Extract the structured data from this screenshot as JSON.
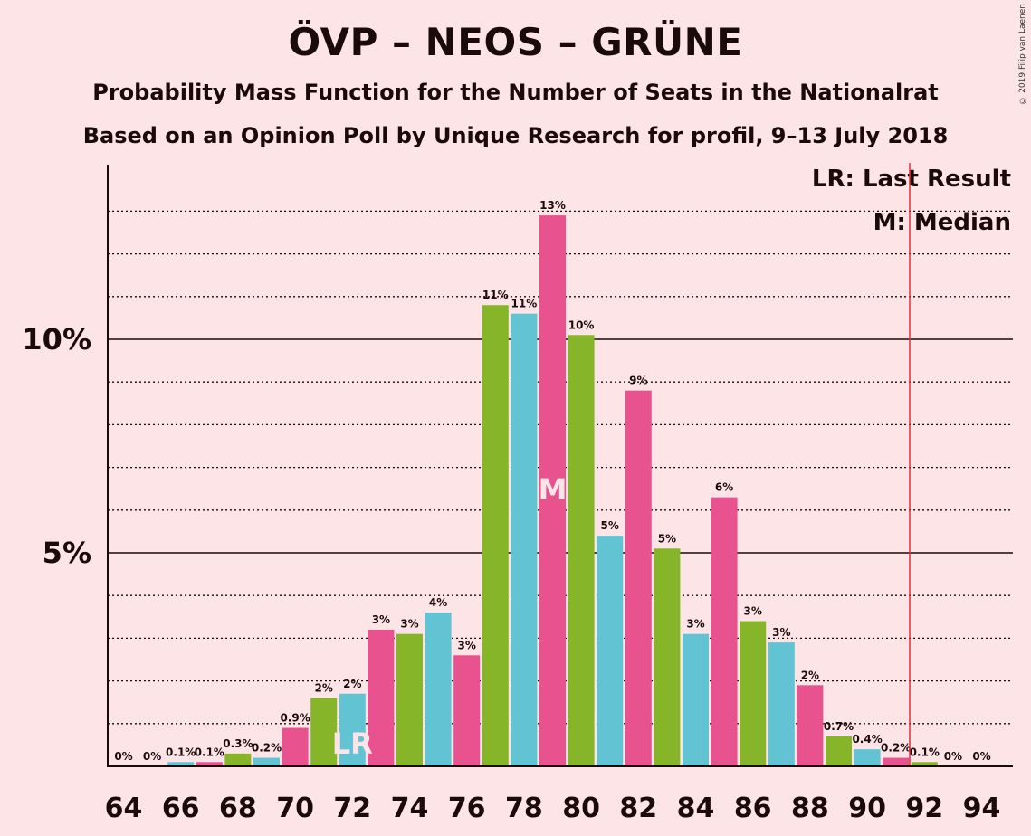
{
  "title": "ÖVP – NEOS – GRÜNE",
  "subtitle_1": "Probability Mass Function for the Number of Seats in the Nationalrat",
  "subtitle_2": "Based on an Opinion Poll by Unique Research for profil, 9–13 July 2018",
  "copyright": "© 2019 Filip van Laenen",
  "legend": {
    "last_result": "LR: Last Result",
    "median": "M: Median"
  },
  "colors": {
    "background": "#fde4e7",
    "green": "#86b52a",
    "blue": "#62c3d3",
    "pink": "#e8538f",
    "majority_line": "#e0303a",
    "text": "#1a0a0a"
  },
  "chart_data": {
    "type": "bar",
    "xlabel": "",
    "ylabel": "",
    "ylim": [
      0,
      14
    ],
    "x_ticks": [
      64,
      66,
      68,
      70,
      72,
      74,
      76,
      78,
      80,
      82,
      84,
      86,
      88,
      90,
      92,
      94
    ],
    "y_ticks": [
      {
        "value": 5,
        "label": "5%"
      },
      {
        "value": 10,
        "label": "10%"
      }
    ],
    "grid": "dotted horizontal lines every 1%",
    "categories": [
      64,
      65,
      66,
      67,
      68,
      69,
      70,
      71,
      72,
      73,
      74,
      75,
      76,
      77,
      78,
      79,
      80,
      81,
      82,
      83,
      84,
      85,
      86,
      87,
      88,
      89,
      90,
      91,
      92,
      93,
      94
    ],
    "values": [
      0,
      0,
      0.1,
      0.1,
      0.3,
      0.2,
      0.9,
      1.6,
      1.7,
      3.2,
      3.1,
      3.6,
      2.6,
      10.8,
      10.6,
      12.9,
      10.1,
      5.4,
      8.8,
      5.1,
      3.1,
      6.3,
      3.4,
      2.9,
      1.9,
      0.7,
      0.4,
      0.2,
      0.1,
      0,
      0
    ],
    "labels": [
      "0%",
      "0%",
      "0.1%",
      "0.1%",
      "0.3%",
      "0.2%",
      "0.9%",
      "2%",
      "2%",
      "3%",
      "3%",
      "4%",
      "3%",
      "11%",
      "11%",
      "13%",
      "10%",
      "5%",
      "9%",
      "5%",
      "3%",
      "6%",
      "3%",
      "3%",
      "2%",
      "0.7%",
      "0.4%",
      "0.2%",
      "0.1%",
      "0%",
      "0%"
    ],
    "bar_colors": [
      "green",
      "blue",
      "blue",
      "pink",
      "green",
      "blue",
      "pink",
      "green",
      "blue",
      "pink",
      "green",
      "blue",
      "pink",
      "green",
      "blue",
      "pink",
      "green",
      "blue",
      "pink",
      "green",
      "blue",
      "pink",
      "green",
      "blue",
      "pink",
      "green",
      "blue",
      "pink",
      "green",
      "blue",
      "pink"
    ],
    "last_result": {
      "seat": 72,
      "label": "LR"
    },
    "median": {
      "seat": 79,
      "label": "M"
    },
    "majority_line": 92
  }
}
